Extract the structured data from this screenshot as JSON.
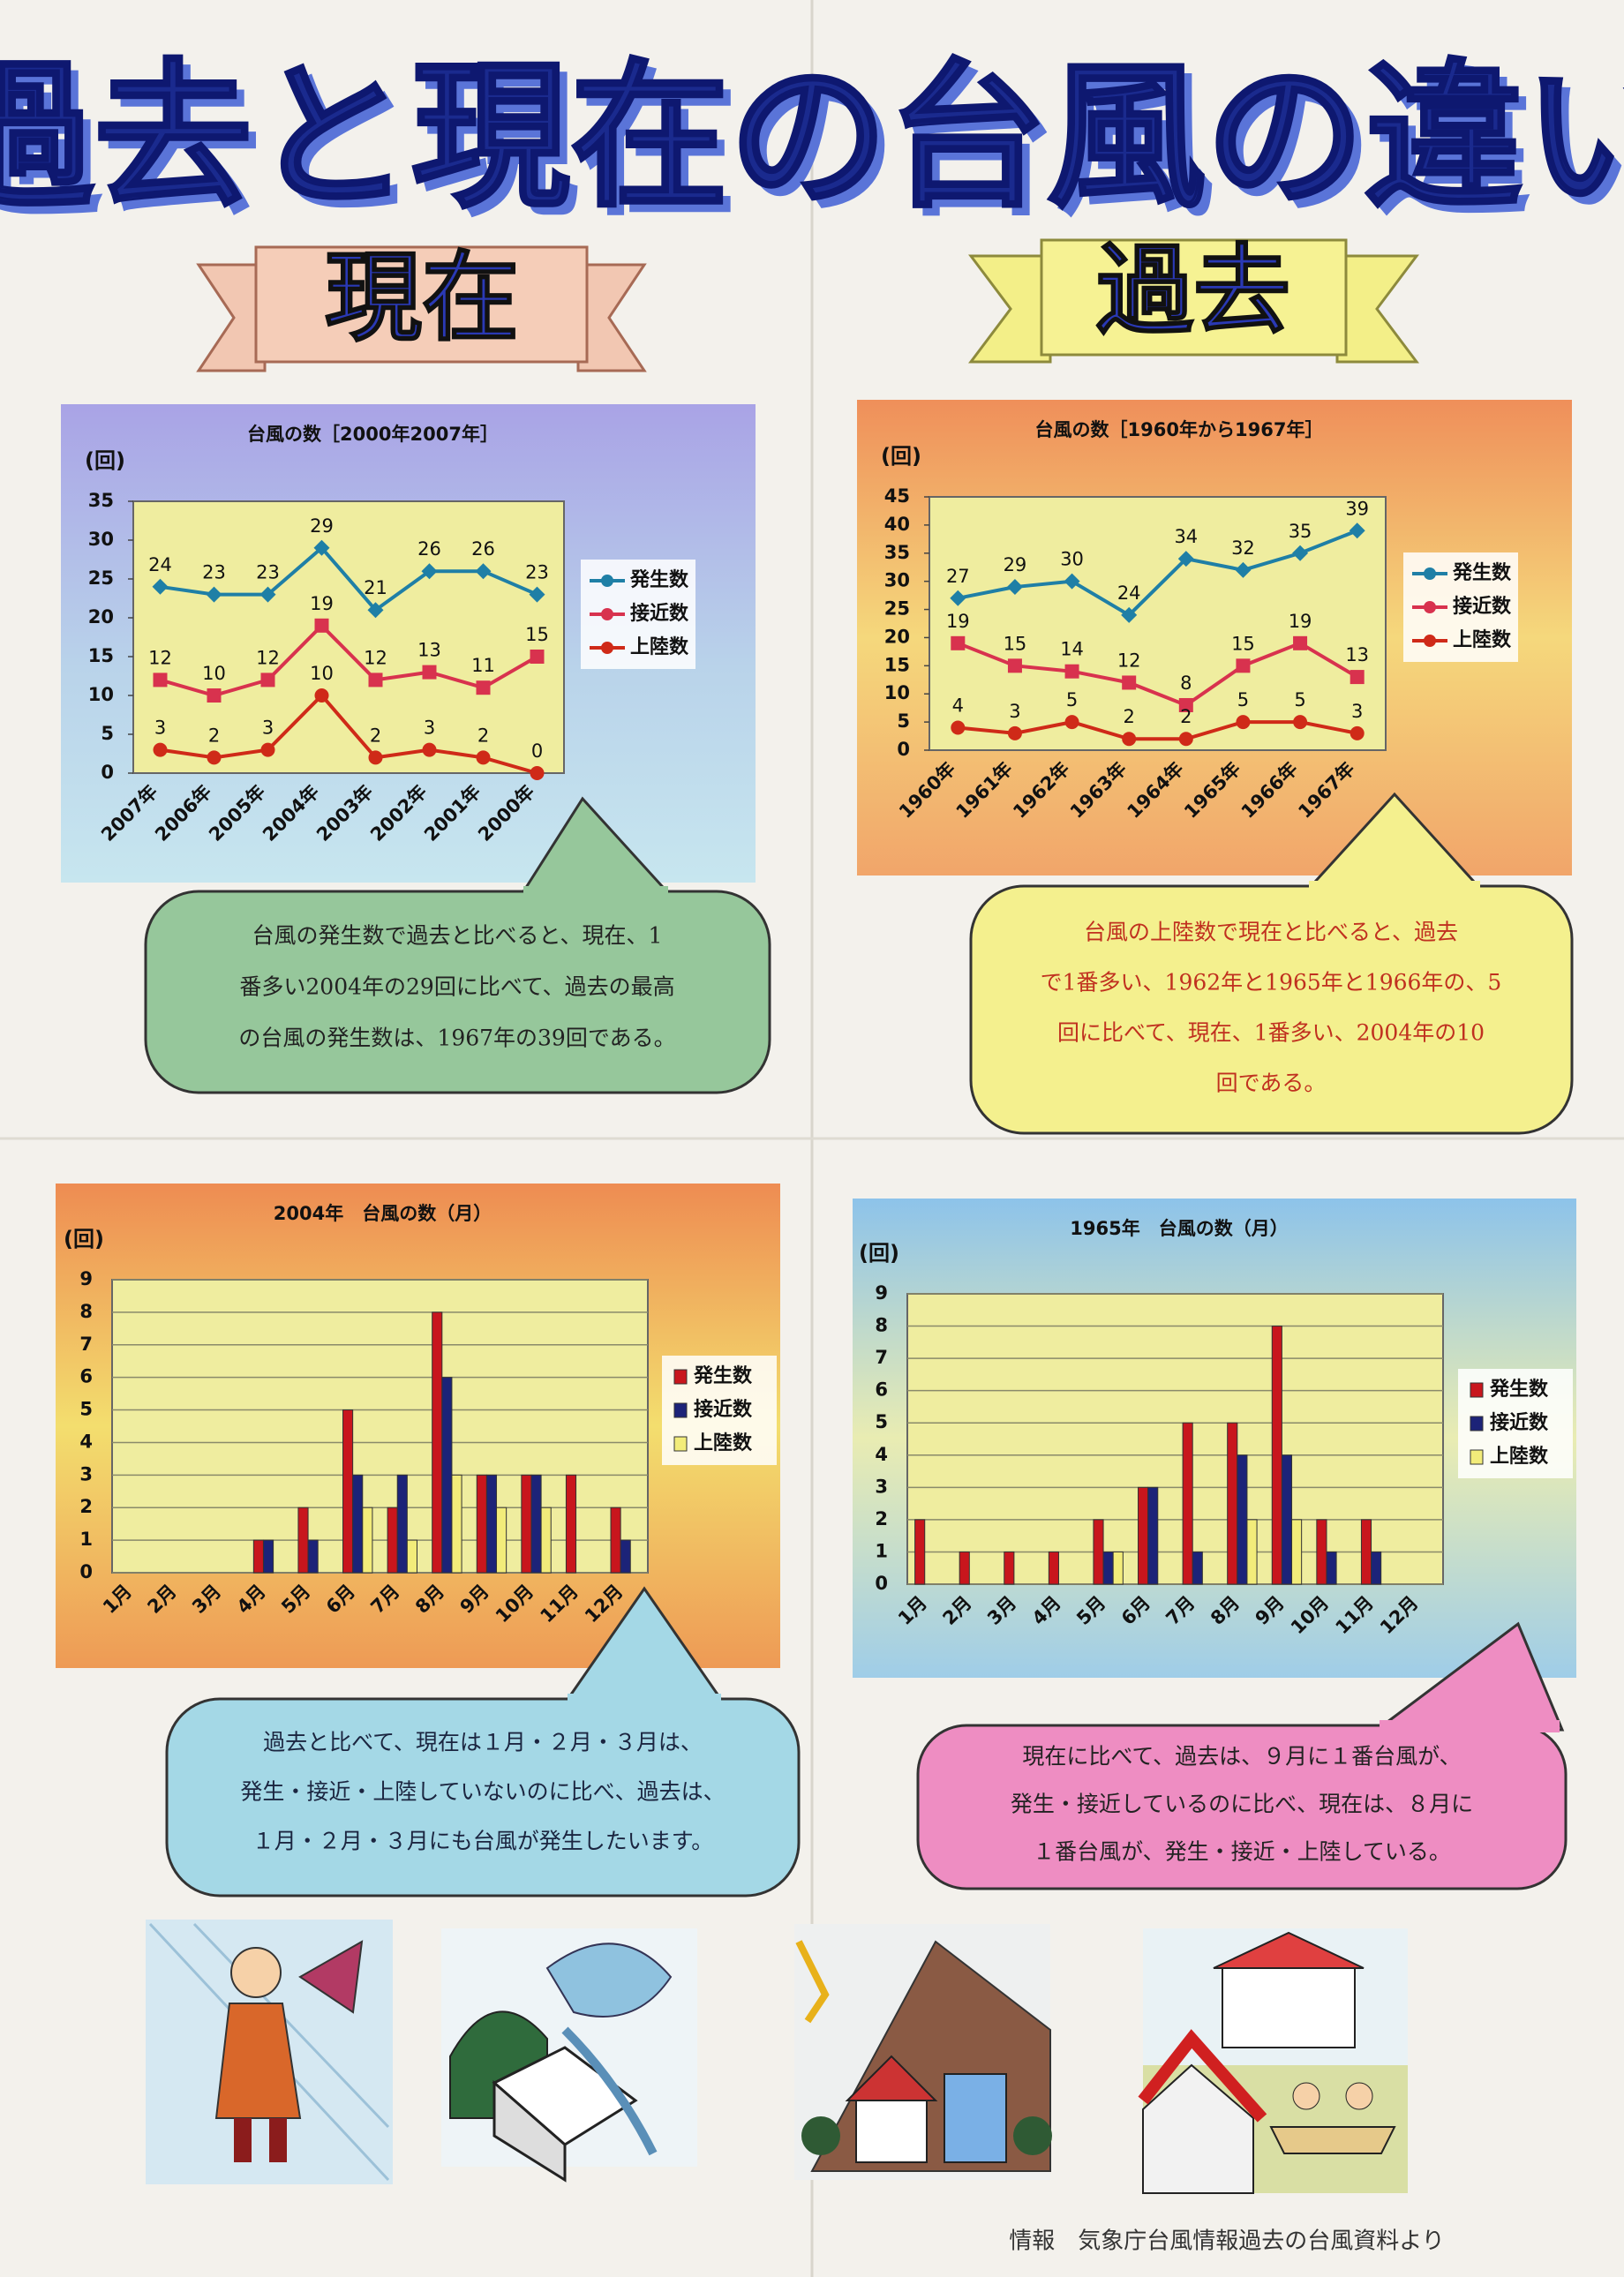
{
  "poster": {
    "title": "過去と現在の台風の違い",
    "banners": [
      "現在",
      "過去"
    ],
    "notes": [
      [
        "台風の発生数で過去と比べると、現在、1",
        "番多い2004年の29回に比べて、過去の最高",
        "の台風の発生数は、1967年の39回である。"
      ],
      [
        "台風の上陸数で現在と比べると、過去",
        "で1番多い、1962年と1965年と1966年の、5",
        "回に比べて、現在、1番多い、2004年の10",
        "回である。"
      ],
      [
        "過去と比べて、現在は１月・２月・３月は、",
        "発生・接近・上陸していないのに比べ、過去は、",
        "１月・２月・３月にも台風が発生したいます。"
      ],
      [
        "現在に比べて、過去は、９月に１番台風が、",
        "発生・接近しているのに比べ、現在は、８月に",
        "１番台風が、発生・接近・上陸している。"
      ]
    ],
    "source": "情報　気象庁台風情報過去の台風資料より"
  },
  "chart_data": [
    {
      "type": "line",
      "title": "台風の数［2000年2007年］",
      "ylabel": "(回)",
      "categories": [
        "2007年",
        "2006年",
        "2005年",
        "2004年",
        "2003年",
        "2002年",
        "2001年",
        "2000年"
      ],
      "series": [
        {
          "name": "発生数",
          "color": "#1f7fa6",
          "values": [
            24,
            23,
            23,
            29,
            21,
            26,
            26,
            23
          ]
        },
        {
          "name": "接近数",
          "color": "#d8324e",
          "values": [
            12,
            10,
            12,
            19,
            12,
            13,
            11,
            15
          ]
        },
        {
          "name": "上陸数",
          "color": "#cf2a18",
          "values": [
            3,
            2,
            3,
            10,
            2,
            3,
            2,
            0
          ]
        }
      ],
      "ylim": [
        0,
        35
      ],
      "yticks": [
        0,
        5,
        10,
        15,
        20,
        25,
        30,
        35
      ],
      "grid": false,
      "legend": "right"
    },
    {
      "type": "line",
      "title": "台風の数［1960年から1967年］",
      "ylabel": "(回)",
      "categories": [
        "1960年",
        "1961年",
        "1962年",
        "1963年",
        "1964年",
        "1965年",
        "1966年",
        "1967年"
      ],
      "series": [
        {
          "name": "発生数",
          "color": "#1f7fa6",
          "values": [
            27,
            29,
            30,
            24,
            34,
            32,
            35,
            39
          ]
        },
        {
          "name": "接近数",
          "color": "#d8324e",
          "values": [
            19,
            15,
            14,
            12,
            8,
            15,
            19,
            13
          ]
        },
        {
          "name": "上陸数",
          "color": "#cf2a18",
          "values": [
            4,
            3,
            5,
            2,
            2,
            5,
            5,
            3
          ]
        }
      ],
      "ylim": [
        0,
        45
      ],
      "yticks": [
        0,
        5,
        10,
        15,
        20,
        25,
        30,
        35,
        40,
        45
      ],
      "grid": false,
      "legend": "right"
    },
    {
      "type": "bar",
      "title": "2004年　台風の数（月）",
      "ylabel": "(回)",
      "categories": [
        "1月",
        "2月",
        "3月",
        "4月",
        "5月",
        "6月",
        "7月",
        "8月",
        "9月",
        "10月",
        "11月",
        "12月"
      ],
      "series": [
        {
          "name": "発生数",
          "color": "#c8161d",
          "values": [
            0,
            0,
            0,
            1,
            2,
            5,
            2,
            8,
            3,
            3,
            3,
            2
          ]
        },
        {
          "name": "接近数",
          "color": "#1c2378",
          "values": [
            0,
            0,
            0,
            1,
            1,
            3,
            3,
            6,
            3,
            3,
            0,
            1
          ]
        },
        {
          "name": "上陸数",
          "color": "#f2ec7a",
          "values": [
            0,
            0,
            0,
            0,
            0,
            2,
            1,
            3,
            2,
            2,
            0,
            0
          ]
        }
      ],
      "ylim": [
        0,
        9
      ],
      "yticks": [
        0,
        1,
        2,
        3,
        4,
        5,
        6,
        7,
        8,
        9
      ],
      "grid": true,
      "legend": "right"
    },
    {
      "type": "bar",
      "title": "1965年　台風の数（月）",
      "ylabel": "(回)",
      "categories": [
        "1月",
        "2月",
        "3月",
        "4月",
        "5月",
        "6月",
        "7月",
        "8月",
        "9月",
        "10月",
        "11月",
        "12月"
      ],
      "series": [
        {
          "name": "発生数",
          "color": "#c8161d",
          "values": [
            2,
            1,
            1,
            1,
            2,
            3,
            5,
            5,
            8,
            2,
            2,
            0
          ]
        },
        {
          "name": "接近数",
          "color": "#1c2378",
          "values": [
            0,
            0,
            0,
            0,
            1,
            3,
            1,
            4,
            4,
            1,
            1,
            0
          ]
        },
        {
          "name": "上陸数",
          "color": "#f2ec7a",
          "values": [
            0,
            0,
            0,
            0,
            1,
            0,
            0,
            2,
            2,
            0,
            0,
            0
          ]
        }
      ],
      "ylim": [
        0,
        9
      ],
      "yticks": [
        0,
        1,
        2,
        3,
        4,
        5,
        6,
        7,
        8,
        9
      ],
      "grid": true,
      "legend": "right"
    }
  ]
}
